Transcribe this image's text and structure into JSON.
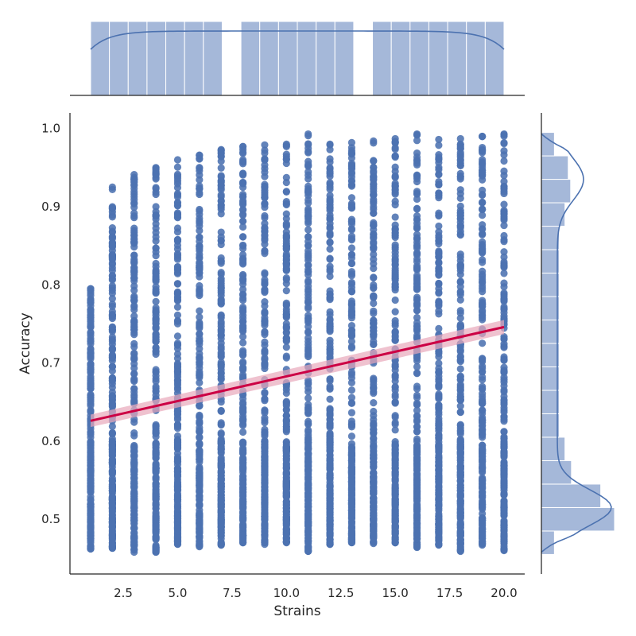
{
  "chart_data": {
    "type": "scatter",
    "subtype": "jointplot-regression",
    "xlabel": "Strains",
    "ylabel": "Accuracy",
    "xlim": [
      0.05,
      20.95
    ],
    "ylim": [
      0.43,
      1.02
    ],
    "x_ticks": [
      2.5,
      5.0,
      7.5,
      10.0,
      12.5,
      15.0,
      17.5,
      20.0
    ],
    "x_tick_labels": [
      "2.5",
      "5.0",
      "7.5",
      "10.0",
      "12.5",
      "15.0",
      "17.5",
      "20.0"
    ],
    "y_ticks": [
      0.5,
      0.6,
      0.7,
      0.8,
      0.9,
      1.0
    ],
    "y_tick_labels": [
      "0.5",
      "0.6",
      "0.7",
      "0.8",
      "0.9",
      "1.0"
    ],
    "grid": false,
    "point_color": "#4c72b0",
    "regression_color": "#cc0044",
    "ci_color": "#e8a8bb",
    "strains": [
      1,
      2,
      3,
      4,
      5,
      6,
      7,
      8,
      9,
      10,
      11,
      12,
      13,
      14,
      15,
      16,
      17,
      18,
      19,
      20
    ],
    "accuracy_ranges": [
      [
        0.462,
        0.795
      ],
      [
        0.463,
        0.925
      ],
      [
        0.458,
        0.941
      ],
      [
        0.458,
        0.95
      ],
      [
        0.468,
        0.96
      ],
      [
        0.465,
        0.966
      ],
      [
        0.467,
        0.973
      ],
      [
        0.47,
        0.977
      ],
      [
        0.468,
        0.979
      ],
      [
        0.47,
        0.98
      ],
      [
        0.459,
        0.993
      ],
      [
        0.468,
        0.98
      ],
      [
        0.47,
        0.982
      ],
      [
        0.469,
        0.984
      ],
      [
        0.47,
        0.987
      ],
      [
        0.464,
        0.993
      ],
      [
        0.467,
        0.986
      ],
      [
        0.459,
        0.987
      ],
      [
        0.467,
        0.99
      ],
      [
        0.46,
        0.993
      ]
    ],
    "regression": {
      "x": [
        1,
        20
      ],
      "y": [
        0.626,
        0.746
      ]
    },
    "marginal_x_counts": [
      1,
      1,
      1,
      1,
      1,
      1,
      1,
      0,
      1,
      1,
      1,
      1,
      1,
      1,
      0,
      1,
      1,
      1,
      1,
      1,
      1,
      1
    ],
    "marginal_y_bins": {
      "edges": [
        0.455,
        0.485,
        0.515,
        0.545,
        0.575,
        0.605,
        0.635,
        0.665,
        0.695,
        0.725,
        0.755,
        0.785,
        0.815,
        0.845,
        0.875,
        0.905,
        0.935,
        0.965,
        0.995
      ],
      "counts": [
        16,
        90,
        73,
        37,
        29,
        22,
        22,
        22,
        22,
        22,
        22,
        22,
        22,
        22,
        29,
        36,
        33,
        16
      ]
    }
  }
}
